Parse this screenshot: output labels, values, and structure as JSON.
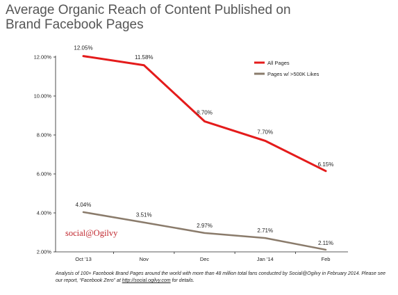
{
  "title": "Average Organic Reach of Content Published on Brand Facebook Pages",
  "brand_mark": "social@Ogilvy",
  "note": {
    "text_before": "Analysis of 100+ Facebook Brand Pages around the world with more than 48 million total fans conducted by Social@Ogilvy in February 2014. Please see our report, “Facebook Zero” at ",
    "link": "http://social.ogilvy.com",
    "text_after": " for details."
  },
  "colors": {
    "all_pages": "#e41b1b",
    "big_pages": "#8a7b6b"
  },
  "chart_data": {
    "type": "line",
    "title": "Average Organic Reach of Content Published on Brand Facebook Pages",
    "xlabel": "",
    "ylabel": "",
    "categories": [
      "Oct '13",
      "Nov",
      "Dec",
      "Jan '14",
      "Feb"
    ],
    "ylim": [
      2,
      12
    ],
    "yticks": [
      "2.00%",
      "4.00%",
      "6.00%",
      "8.00%",
      "10.00%",
      "12.00%"
    ],
    "grid": false,
    "legend": "top-right",
    "series": [
      {
        "name": "All Pages",
        "values": [
          12.05,
          11.58,
          8.7,
          7.7,
          6.15
        ],
        "labels": [
          "12.05%",
          "11.58%",
          "8.70%",
          "7.70%",
          "6.15%"
        ]
      },
      {
        "name": "Pages w/ >500K Likes",
        "values": [
          4.04,
          3.51,
          2.97,
          2.71,
          2.11
        ],
        "labels": [
          "4.04%",
          "3.51%",
          "2.97%",
          "2.71%",
          "2.11%"
        ]
      }
    ]
  }
}
